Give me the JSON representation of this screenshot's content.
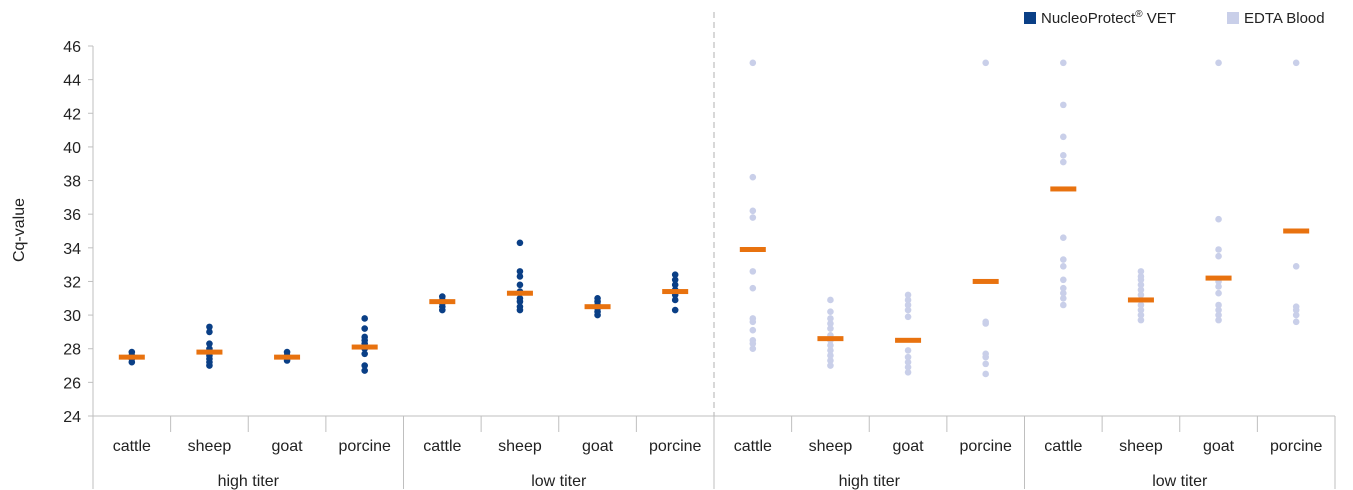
{
  "chart_data": {
    "type": "scatter",
    "ylabel": "Cq-value",
    "ylim": [
      24,
      46
    ],
    "yticks": [
      "24",
      "26",
      "28",
      "30",
      "32",
      "34",
      "36",
      "38",
      "40",
      "42",
      "44",
      "46"
    ],
    "legend": {
      "placement": "top-right",
      "entries": [
        {
          "label": "NucleoProtect",
          "sup": "®",
          "label_suffix": " VET",
          "color": "#0a3f86"
        },
        {
          "label": "EDTA Blood",
          "sup": "",
          "label_suffix": "",
          "color": "#c9cfe9"
        }
      ]
    },
    "groups": [
      {
        "label": "high titer",
        "series": "NucleoProtect® VET"
      },
      {
        "label": "low titer",
        "series": "NucleoProtect® VET"
      },
      {
        "label": "high titer",
        "series": "EDTA Blood"
      },
      {
        "label": "low titer",
        "series": "EDTA Blood"
      }
    ],
    "categories": [
      {
        "label": "cattle",
        "group": 0,
        "series": 0,
        "mean": 27.5,
        "points": [
          27.2,
          27.4,
          27.5,
          27.6,
          27.8
        ]
      },
      {
        "label": "sheep",
        "group": 0,
        "series": 0,
        "mean": 27.8,
        "points": [
          27.0,
          27.2,
          27.4,
          27.6,
          27.8,
          28.0,
          28.3,
          29.0,
          29.3
        ]
      },
      {
        "label": "goat",
        "group": 0,
        "series": 0,
        "mean": 27.5,
        "points": [
          27.3,
          27.4,
          27.5,
          27.6,
          27.8
        ]
      },
      {
        "label": "porcine",
        "group": 0,
        "series": 0,
        "mean": 28.1,
        "points": [
          26.7,
          27.0,
          27.7,
          28.0,
          28.3,
          28.5,
          28.7,
          29.2,
          29.8
        ]
      },
      {
        "label": "cattle",
        "group": 1,
        "series": 0,
        "mean": 30.8,
        "points": [
          30.3,
          30.5,
          30.7,
          30.9,
          31.1
        ]
      },
      {
        "label": "sheep",
        "group": 1,
        "series": 0,
        "mean": 31.3,
        "points": [
          30.3,
          30.5,
          30.8,
          31.0,
          31.4,
          31.8,
          32.3,
          32.6,
          34.3
        ]
      },
      {
        "label": "goat",
        "group": 1,
        "series": 0,
        "mean": 30.5,
        "points": [
          30.0,
          30.2,
          30.4,
          30.6,
          30.8,
          31.0
        ]
      },
      {
        "label": "porcine",
        "group": 1,
        "series": 0,
        "mean": 31.4,
        "points": [
          30.3,
          30.9,
          31.2,
          31.5,
          31.8,
          32.1,
          32.4
        ]
      },
      {
        "label": "cattle",
        "group": 2,
        "series": 1,
        "mean": 33.9,
        "points": [
          28.0,
          28.3,
          28.5,
          29.1,
          29.6,
          29.8,
          31.6,
          32.6,
          35.8,
          36.2,
          38.2,
          45.0
        ]
      },
      {
        "label": "sheep",
        "group": 2,
        "series": 1,
        "mean": 28.6,
        "points": [
          27.0,
          27.3,
          27.6,
          27.9,
          28.2,
          28.5,
          28.8,
          29.2,
          29.5,
          29.8,
          30.2,
          30.9
        ]
      },
      {
        "label": "goat",
        "group": 2,
        "series": 1,
        "mean": 28.5,
        "points": [
          26.6,
          26.9,
          27.2,
          27.5,
          27.9,
          29.9,
          30.3,
          30.6,
          30.9,
          31.2
        ]
      },
      {
        "label": "porcine",
        "group": 2,
        "series": 1,
        "mean": 32.0,
        "points": [
          26.5,
          27.1,
          27.5,
          27.7,
          29.5,
          29.6,
          45.0
        ]
      },
      {
        "label": "cattle",
        "group": 3,
        "series": 1,
        "mean": 37.5,
        "points": [
          30.6,
          31.0,
          31.3,
          31.6,
          32.1,
          32.9,
          33.3,
          34.6,
          39.1,
          39.5,
          40.6,
          42.5,
          45.0
        ]
      },
      {
        "label": "sheep",
        "group": 3,
        "series": 1,
        "mean": 30.9,
        "points": [
          29.7,
          30.0,
          30.3,
          30.6,
          30.9,
          31.2,
          31.5,
          31.8,
          32.1,
          32.3,
          32.6
        ]
      },
      {
        "label": "goat",
        "group": 3,
        "series": 1,
        "mean": 32.2,
        "points": [
          29.7,
          30.0,
          30.3,
          30.6,
          31.3,
          31.7,
          32.0,
          33.5,
          33.9,
          35.7,
          45.0
        ]
      },
      {
        "label": "porcine",
        "group": 3,
        "series": 1,
        "mean": 35.0,
        "points": [
          29.6,
          30.0,
          30.3,
          30.5,
          32.9,
          45.0
        ]
      }
    ],
    "mean_color": "#e8720f",
    "axis_color": "#bfbfbf"
  }
}
